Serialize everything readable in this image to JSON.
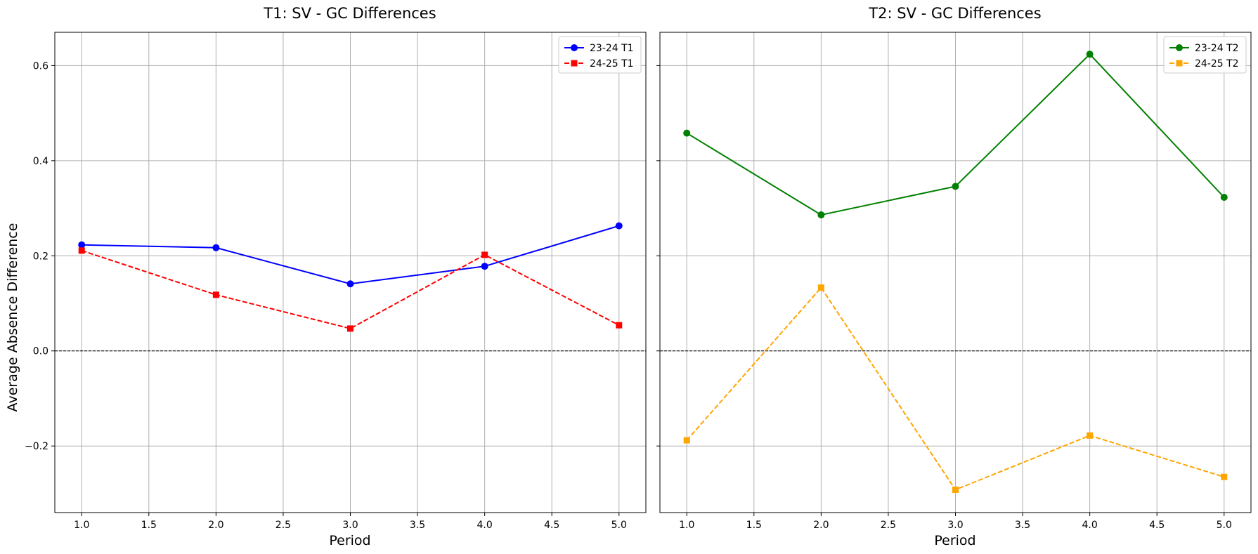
{
  "shared": {
    "ylabel": "Average Absence Difference",
    "ylim": [
      -0.34,
      0.67
    ],
    "yticks": [
      -0.2,
      0.0,
      0.2,
      0.4,
      0.6
    ],
    "ytick_labels": [
      "−0.2",
      "0.0",
      "0.2",
      "0.4",
      "0.6"
    ],
    "xticks": [
      1.0,
      1.5,
      2.0,
      2.5,
      3.0,
      3.5,
      4.0,
      4.5,
      5.0
    ],
    "xtick_labels": [
      "1.0",
      "1.5",
      "2.0",
      "2.5",
      "3.0",
      "3.5",
      "4.0",
      "4.5",
      "5.0"
    ],
    "zero_line": 0.0
  },
  "chart_data": [
    {
      "type": "line",
      "title": "T1: SV - GC Differences",
      "xlabel": "Period",
      "ylabel": "Average Absence Difference",
      "xlim": [
        0.8,
        5.2
      ],
      "ylim": [
        -0.34,
        0.67
      ],
      "grid": true,
      "legend_position": "top-right",
      "x": [
        1,
        2,
        3,
        4,
        5
      ],
      "series": [
        {
          "name": "23-24 T1",
          "values": [
            0.223,
            0.217,
            0.141,
            0.178,
            0.263
          ],
          "color": "#0000ff",
          "dash": "solid",
          "marker": "circle"
        },
        {
          "name": "24-25 T1",
          "values": [
            0.211,
            0.118,
            0.047,
            0.202,
            0.054
          ],
          "color": "#ff0000",
          "dash": "dashed",
          "marker": "square"
        }
      ]
    },
    {
      "type": "line",
      "title": "T2: SV - GC Differences",
      "xlabel": "Period",
      "ylabel": "",
      "xlim": [
        0.8,
        5.2
      ],
      "ylim": [
        -0.34,
        0.67
      ],
      "grid": true,
      "legend_position": "top-right",
      "x": [
        1,
        2,
        3,
        4,
        5
      ],
      "series": [
        {
          "name": "23-24 T2",
          "values": [
            0.458,
            0.286,
            0.346,
            0.624,
            0.323
          ],
          "color": "#008000",
          "dash": "solid",
          "marker": "circle"
        },
        {
          "name": "24-25 T2",
          "values": [
            -0.188,
            0.133,
            -0.292,
            -0.178,
            -0.265
          ],
          "color": "#ffa500",
          "dash": "dashed",
          "marker": "square"
        }
      ]
    }
  ]
}
